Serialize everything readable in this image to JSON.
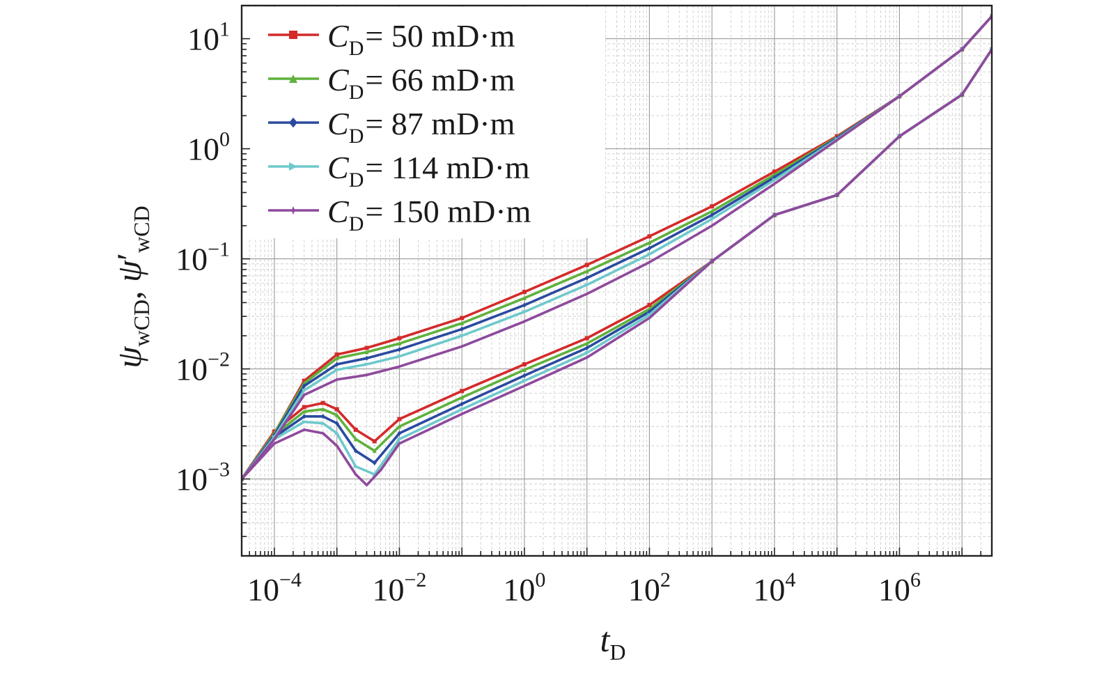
{
  "chart_data": {
    "type": "line",
    "xscale": "log",
    "yscale": "log",
    "xlim": [
      3e-05,
      30000000
    ],
    "ylim": [
      0.0002,
      20
    ],
    "grid": true,
    "legend_position": "top-left",
    "xlabel": {
      "main": "t",
      "sub": "D"
    },
    "ylabel": {
      "psi": "ψ",
      "sub_wcd": "wCD",
      "separator": ", ",
      "prime": "′"
    },
    "xticks": [
      {
        "value": 0.0001,
        "base": "10",
        "exp": "−4"
      },
      {
        "value": 0.01,
        "base": "10",
        "exp": "−2"
      },
      {
        "value": 1,
        "base": "10",
        "exp": "0"
      },
      {
        "value": 100,
        "base": "10",
        "exp": "2"
      },
      {
        "value": 10000,
        "base": "10",
        "exp": "4"
      },
      {
        "value": 1000000,
        "base": "10",
        "exp": "6"
      }
    ],
    "yticks": [
      {
        "value": 0.001,
        "base": "10",
        "exp": "−3"
      },
      {
        "value": 0.01,
        "base": "10",
        "exp": "−2"
      },
      {
        "value": 0.1,
        "base": "10",
        "exp": "−1"
      },
      {
        "value": 1,
        "base": "10",
        "exp": "0"
      },
      {
        "value": 10,
        "base": "10",
        "exp": "1"
      }
    ],
    "series": [
      {
        "name": "C_D = 50 mD·m",
        "legend": {
          "c": "C",
          "sub": "D",
          "rest": "= 50 mD·m"
        },
        "color": "#d42a2a",
        "marker": "square",
        "pressure": [
          [
            3e-05,
            0.001
          ],
          [
            0.0001,
            0.0026
          ],
          [
            0.0003,
            0.0078
          ],
          [
            0.001,
            0.0135
          ],
          [
            0.003,
            0.0155
          ],
          [
            0.01,
            0.019
          ],
          [
            0.1,
            0.029
          ],
          [
            1,
            0.05
          ],
          [
            10,
            0.088
          ],
          [
            100,
            0.16
          ],
          [
            1000,
            0.3
          ],
          [
            10000,
            0.62
          ],
          [
            100000,
            1.3
          ],
          [
            1000000,
            3.0
          ],
          [
            10000000,
            8.0
          ],
          [
            30000000,
            16
          ]
        ],
        "derivative": [
          [
            3e-05,
            0.001
          ],
          [
            0.0001,
            0.0027
          ],
          [
            0.0003,
            0.0045
          ],
          [
            0.0006,
            0.0049
          ],
          [
            0.001,
            0.0043
          ],
          [
            0.002,
            0.0028
          ],
          [
            0.004,
            0.0022
          ],
          [
            0.01,
            0.0035
          ],
          [
            0.1,
            0.0063
          ],
          [
            1,
            0.011
          ],
          [
            10,
            0.019
          ],
          [
            100,
            0.038
          ],
          [
            1000,
            0.095
          ],
          [
            10000,
            0.25
          ],
          [
            100000,
            0.38
          ],
          [
            1000000,
            1.3
          ],
          [
            10000000,
            3.1
          ],
          [
            30000000,
            8.0
          ]
        ]
      },
      {
        "name": "C_D = 66 mD·m",
        "legend": {
          "c": "C",
          "sub": "D",
          "rest": "= 66 mD·m"
        },
        "color": "#5fb13c",
        "marker": "triangle",
        "pressure": [
          [
            3e-05,
            0.001
          ],
          [
            0.0001,
            0.0026
          ],
          [
            0.0003,
            0.0074
          ],
          [
            0.001,
            0.0125
          ],
          [
            0.003,
            0.0142
          ],
          [
            0.01,
            0.017
          ],
          [
            0.1,
            0.026
          ],
          [
            1,
            0.044
          ],
          [
            10,
            0.077
          ],
          [
            100,
            0.14
          ],
          [
            1000,
            0.27
          ],
          [
            10000,
            0.58
          ],
          [
            100000,
            1.27
          ],
          [
            1000000,
            3.0
          ],
          [
            10000000,
            8.0
          ],
          [
            30000000,
            16
          ]
        ],
        "derivative": [
          [
            3e-05,
            0.001
          ],
          [
            0.0001,
            0.0025
          ],
          [
            0.0003,
            0.0041
          ],
          [
            0.0006,
            0.0043
          ],
          [
            0.001,
            0.0038
          ],
          [
            0.002,
            0.0023
          ],
          [
            0.004,
            0.0018
          ],
          [
            0.01,
            0.003
          ],
          [
            0.1,
            0.0055
          ],
          [
            1,
            0.0098
          ],
          [
            10,
            0.017
          ],
          [
            100,
            0.035
          ],
          [
            1000,
            0.095
          ],
          [
            10000,
            0.25
          ],
          [
            100000,
            0.38
          ],
          [
            1000000,
            1.3
          ],
          [
            10000000,
            3.1
          ],
          [
            30000000,
            8.0
          ]
        ]
      },
      {
        "name": "C_D = 87 mD·m",
        "legend": {
          "c": "C",
          "sub": "D",
          "rest": "= 87 mD·m"
        },
        "color": "#2a4aa0",
        "marker": "diamond",
        "pressure": [
          [
            3e-05,
            0.001
          ],
          [
            0.0001,
            0.0025
          ],
          [
            0.0003,
            0.007
          ],
          [
            0.001,
            0.011
          ],
          [
            0.003,
            0.0125
          ],
          [
            0.01,
            0.015
          ],
          [
            0.1,
            0.023
          ],
          [
            1,
            0.038
          ],
          [
            10,
            0.067
          ],
          [
            100,
            0.125
          ],
          [
            1000,
            0.25
          ],
          [
            10000,
            0.55
          ],
          [
            100000,
            1.25
          ],
          [
            1000000,
            3.0
          ],
          [
            10000000,
            8.0
          ],
          [
            30000000,
            16
          ]
        ],
        "derivative": [
          [
            3e-05,
            0.001
          ],
          [
            0.0001,
            0.0024
          ],
          [
            0.0003,
            0.0037
          ],
          [
            0.0006,
            0.0037
          ],
          [
            0.001,
            0.0032
          ],
          [
            0.002,
            0.0018
          ],
          [
            0.004,
            0.0014
          ],
          [
            0.01,
            0.0026
          ],
          [
            0.1,
            0.0048
          ],
          [
            1,
            0.0087
          ],
          [
            10,
            0.0155
          ],
          [
            100,
            0.033
          ],
          [
            1000,
            0.095
          ],
          [
            10000,
            0.25
          ],
          [
            100000,
            0.38
          ],
          [
            1000000,
            1.3
          ],
          [
            10000000,
            3.1
          ],
          [
            30000000,
            8.0
          ]
        ]
      },
      {
        "name": "C_D = 114 mD·m",
        "legend": {
          "c": "C",
          "sub": "D",
          "rest": "= 114 mD·m"
        },
        "color": "#6ec9cc",
        "marker": "right-triangle",
        "pressure": [
          [
            3e-05,
            0.001
          ],
          [
            0.0001,
            0.0024
          ],
          [
            0.0003,
            0.0064
          ],
          [
            0.001,
            0.0098
          ],
          [
            0.003,
            0.011
          ],
          [
            0.01,
            0.013
          ],
          [
            0.1,
            0.02
          ],
          [
            1,
            0.033
          ],
          [
            10,
            0.058
          ],
          [
            100,
            0.11
          ],
          [
            1000,
            0.23
          ],
          [
            10000,
            0.52
          ],
          [
            100000,
            1.22
          ],
          [
            1000000,
            3.0
          ],
          [
            10000000,
            8.0
          ],
          [
            30000000,
            16
          ]
        ],
        "derivative": [
          [
            3e-05,
            0.001
          ],
          [
            0.0001,
            0.0023
          ],
          [
            0.0003,
            0.0033
          ],
          [
            0.0006,
            0.0032
          ],
          [
            0.001,
            0.0026
          ],
          [
            0.002,
            0.0013
          ],
          [
            0.004,
            0.0011
          ],
          [
            0.01,
            0.0023
          ],
          [
            0.1,
            0.0043
          ],
          [
            1,
            0.0078
          ],
          [
            10,
            0.014
          ],
          [
            100,
            0.031
          ],
          [
            1000,
            0.095
          ],
          [
            10000,
            0.25
          ],
          [
            100000,
            0.38
          ],
          [
            1000000,
            1.3
          ],
          [
            10000000,
            3.1
          ],
          [
            30000000,
            8.0
          ]
        ]
      },
      {
        "name": "C_D = 150 mD·m",
        "legend": {
          "c": "C",
          "sub": "D",
          "rest": "= 150 mD·m"
        },
        "color": "#8e4a9c",
        "marker": "star",
        "pressure": [
          [
            3e-05,
            0.001
          ],
          [
            0.0001,
            0.0023
          ],
          [
            0.0003,
            0.0058
          ],
          [
            0.001,
            0.008
          ],
          [
            0.003,
            0.0088
          ],
          [
            0.01,
            0.0105
          ],
          [
            0.1,
            0.016
          ],
          [
            1,
            0.027
          ],
          [
            10,
            0.048
          ],
          [
            100,
            0.093
          ],
          [
            1000,
            0.2
          ],
          [
            10000,
            0.48
          ],
          [
            100000,
            1.2
          ],
          [
            1000000,
            3.0
          ],
          [
            10000000,
            8.0
          ],
          [
            30000000,
            16
          ]
        ],
        "derivative": [
          [
            3e-05,
            0.001
          ],
          [
            0.0001,
            0.0021
          ],
          [
            0.0003,
            0.0028
          ],
          [
            0.0006,
            0.0026
          ],
          [
            0.001,
            0.002
          ],
          [
            0.002,
            0.0011
          ],
          [
            0.003,
            0.00088
          ],
          [
            0.005,
            0.0012
          ],
          [
            0.01,
            0.0021
          ],
          [
            0.1,
            0.0039
          ],
          [
            1,
            0.007
          ],
          [
            10,
            0.0127
          ],
          [
            100,
            0.029
          ],
          [
            1000,
            0.095
          ],
          [
            10000,
            0.25
          ],
          [
            100000,
            0.38
          ],
          [
            1000000,
            1.3
          ],
          [
            10000000,
            3.1
          ],
          [
            30000000,
            8.0
          ]
        ]
      }
    ]
  }
}
